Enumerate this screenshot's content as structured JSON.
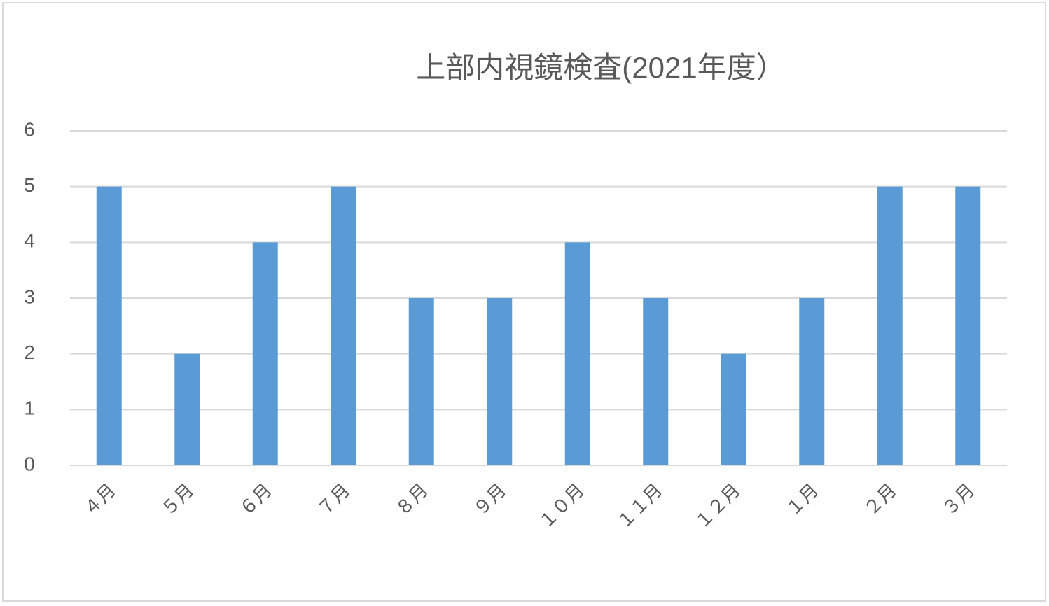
{
  "chart_data": {
    "type": "bar",
    "title": "上部内視鏡検査(2021年度）",
    "categories": [
      "４月",
      "５月",
      "６月",
      "７月",
      "８月",
      "９月",
      "１０月",
      "１１月",
      "１２月",
      "１月",
      "２月",
      "３月"
    ],
    "values": [
      5,
      2,
      4,
      5,
      3,
      3,
      4,
      3,
      2,
      3,
      5,
      5
    ],
    "color": "#5b9bd5",
    "ylim": [
      0,
      6
    ],
    "yticks": [
      0,
      1,
      2,
      3,
      4,
      5,
      6
    ],
    "grid": true
  }
}
